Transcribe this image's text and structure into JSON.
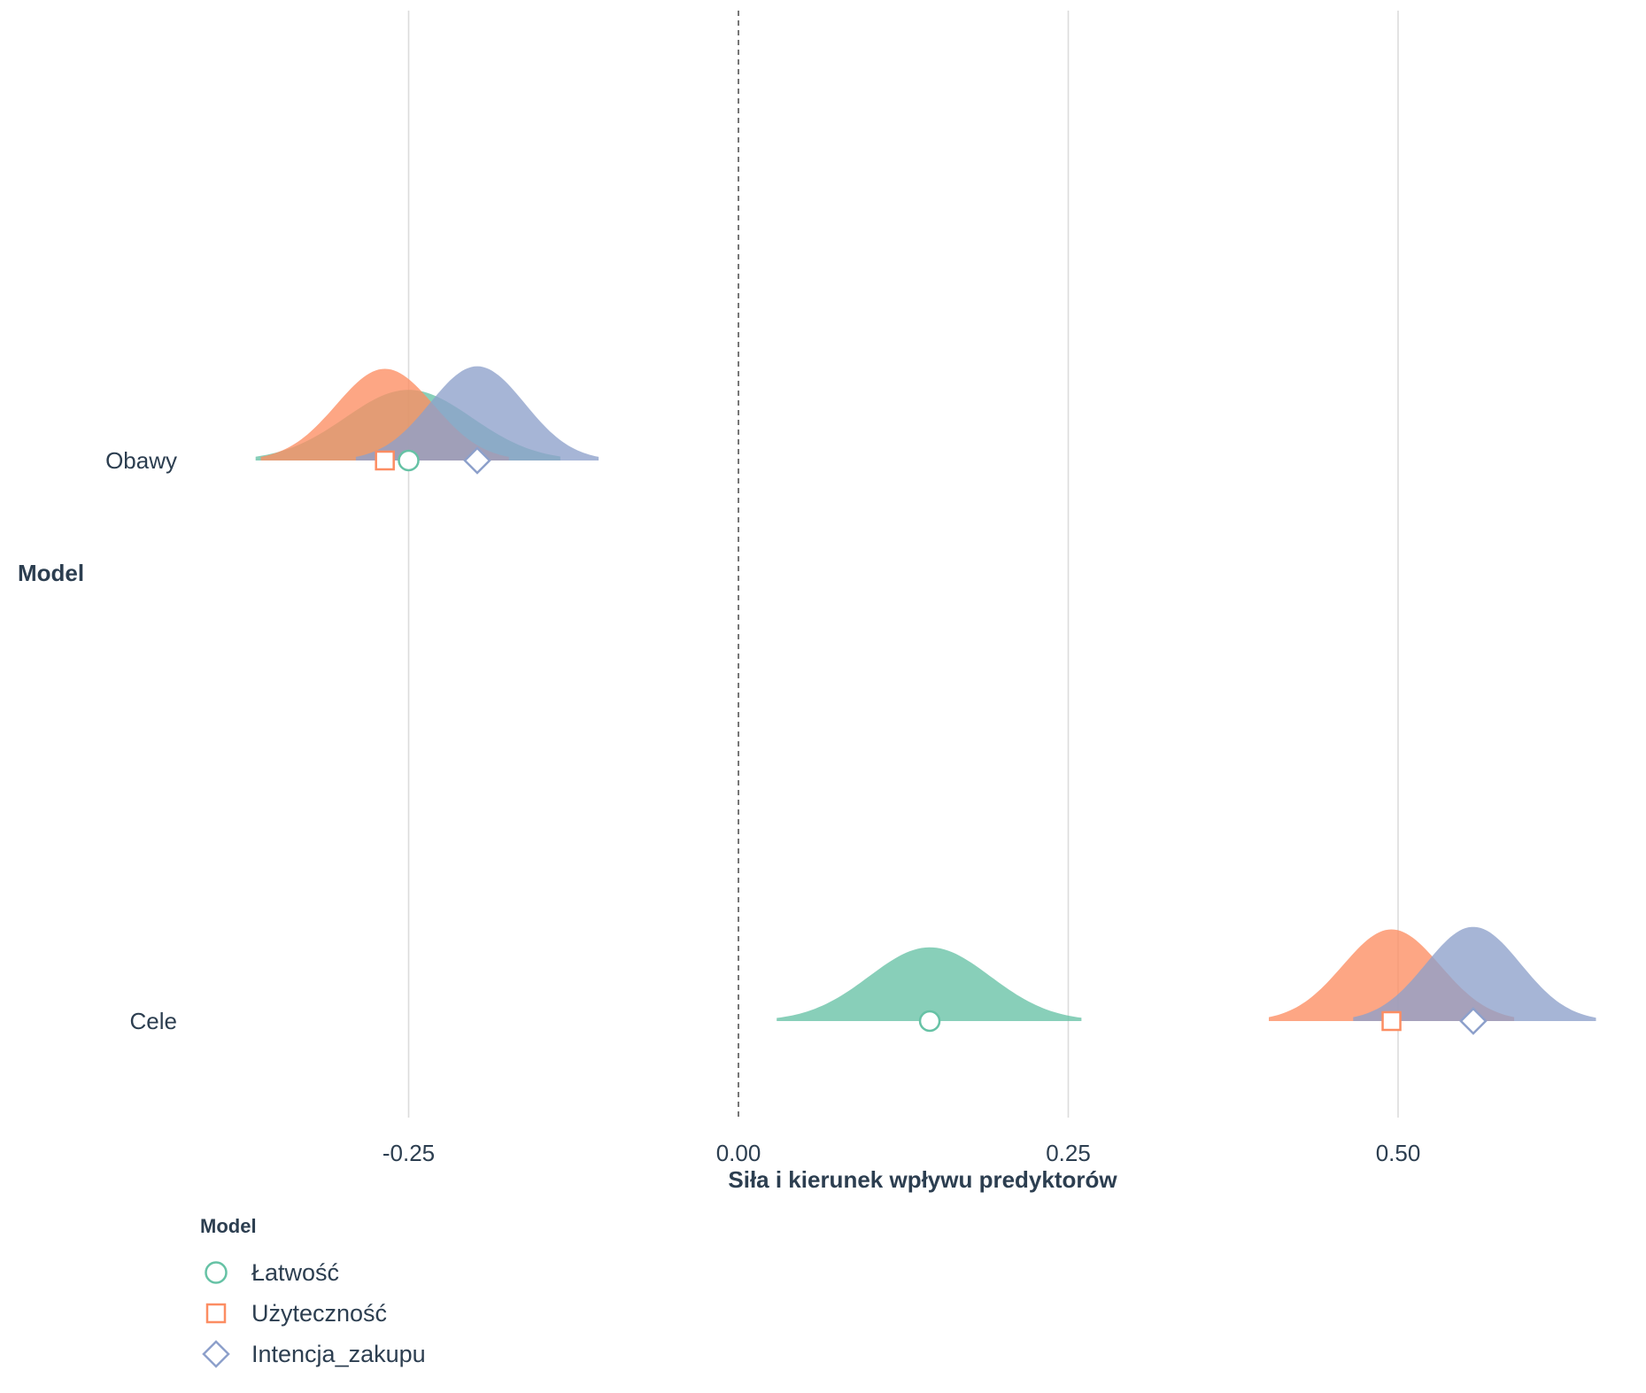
{
  "chart_data": {
    "type": "ridgeline",
    "xlabel": "Siła i kierunek wpływu predyktorów",
    "ylabel": "Model",
    "xlim": [
      -0.5,
      0.67
    ],
    "xticks": [
      -0.25,
      0.0,
      0.25,
      0.5
    ],
    "xtick_labels": [
      "-0.25",
      "0.00",
      "0.25",
      "0.50"
    ],
    "reference_line": 0.0,
    "categories": [
      "Obawy",
      "Cele"
    ],
    "legend_title": "Model",
    "legend_position": "bottom-left",
    "grid": "vertical major",
    "series": [
      {
        "name": "Łatwość",
        "color": "#66c2a5",
        "marker": "circle",
        "points": [
          {
            "category": "Obawy",
            "estimate": -0.25,
            "sd": 0.048,
            "interval": [
              -0.366,
              -0.135
            ]
          },
          {
            "category": "Cele",
            "estimate": 0.145,
            "sd": 0.046,
            "interval": [
              0.029,
              0.26
            ]
          }
        ]
      },
      {
        "name": "Użyteczność",
        "color": "#fc8d62",
        "marker": "square",
        "points": [
          {
            "category": "Obawy",
            "estimate": -0.268,
            "sd": 0.037,
            "interval": [
              -0.362,
              -0.174
            ]
          },
          {
            "category": "Cele",
            "estimate": 0.495,
            "sd": 0.037,
            "interval": [
              0.402,
              0.588
            ]
          }
        ]
      },
      {
        "name": "Intencja_zakupu",
        "color": "#8da0cb",
        "marker": "diamond",
        "points": [
          {
            "category": "Obawy",
            "estimate": -0.198,
            "sd": 0.036,
            "interval": [
              -0.29,
              -0.106
            ]
          },
          {
            "category": "Cele",
            "estimate": 0.557,
            "sd": 0.036,
            "interval": [
              0.466,
              0.65
            ]
          }
        ]
      }
    ]
  }
}
